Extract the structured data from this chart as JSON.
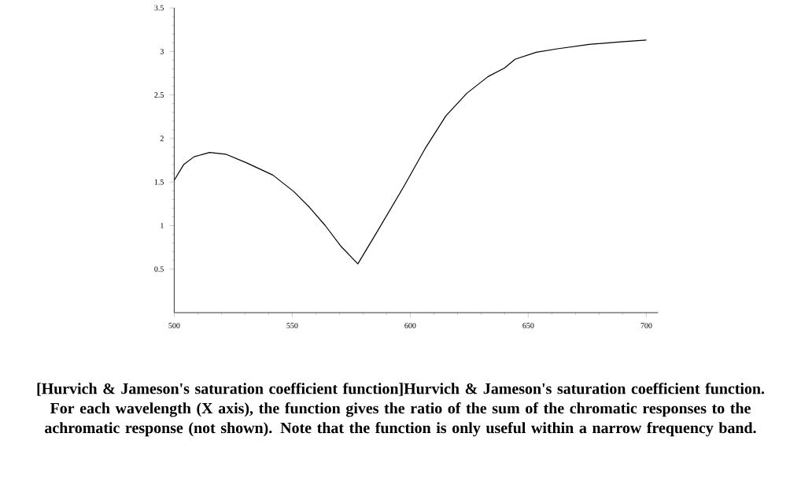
{
  "chart_data": {
    "type": "line",
    "x": [
      500,
      504,
      508.4,
      515,
      521.8,
      530.7,
      541.8,
      550.7,
      557.3,
      564,
      570.7,
      577.8,
      586.2,
      597.3,
      606.2,
      615.1,
      624,
      632.9,
      640,
      644.4,
      653.4,
      662.3,
      675.8,
      689.2,
      700
    ],
    "series": [
      {
        "color": "#000000",
        "values": [
          1.52,
          1.7,
          1.79,
          1.84,
          1.82,
          1.72,
          1.58,
          1.39,
          1.21,
          1.0,
          0.76,
          0.56,
          0.94,
          1.45,
          1.88,
          2.26,
          2.52,
          2.71,
          2.81,
          2.91,
          2.99,
          3.03,
          3.08,
          3.11,
          3.13
        ]
      }
    ],
    "xlim": [
      500,
      705
    ],
    "ylim": [
      0,
      3.5
    ],
    "xticks": [
      500,
      550,
      600,
      650,
      700
    ],
    "yticks": [
      0.5,
      1,
      1.5,
      2,
      2.5,
      3,
      3.5
    ],
    "grid": false,
    "marker": "none",
    "line_style": "solid",
    "annotations": [
      "[Hurvich & Jameson's saturation coefficient function]Hurvich & Jameson's saturation coefficient function. For each wavelength (X axis), the function gives the ratio of the sum of the chromatic responses to the achromatic response (not shown). Note that the function is only useful within a narrow frequency band."
    ]
  }
}
